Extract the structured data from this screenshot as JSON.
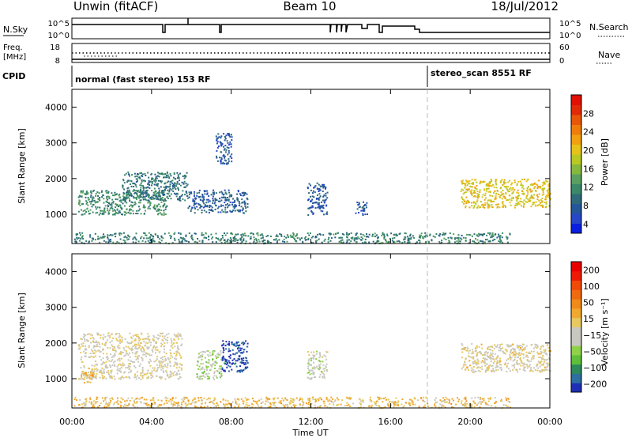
{
  "header": {
    "radar": "Unwin (fitACF)",
    "beam": "Beam 10",
    "date": "18/Jul/2012"
  },
  "aux_panels": {
    "nsky_label": "N.Sky",
    "nsky_ticks": [
      "10^5",
      "10^0"
    ],
    "nsearch_label": "N.Search",
    "nsearch_ticks": [
      "10^5",
      "10^0"
    ],
    "freq_label_line1": "Freq.",
    "freq_label_line2": "[MHz]",
    "freq_ticks": [
      "18",
      "8"
    ],
    "nave_label": "Nave",
    "nave_ticks": [
      "60",
      "0"
    ],
    "cpid_label": "CPID",
    "modes": [
      {
        "text": "normal (fast stereo) 153 RF",
        "start_hour": 0
      },
      {
        "text": "stereo_scan 8551 RF",
        "start_hour": 18
      }
    ]
  },
  "colorbars": {
    "power": {
      "title": "Power [dB]",
      "ticks": [
        "28",
        "24",
        "20",
        "16",
        "12",
        "8",
        "4"
      ],
      "colors": [
        "#0a1fe0",
        "#2747c8",
        "#24579a",
        "#2f6a7a",
        "#3a8a6a",
        "#5aa060",
        "#86b83e",
        "#b9c824",
        "#e6c21a",
        "#f0a010",
        "#f07c0c",
        "#e8560a",
        "#e02a08",
        "#e01005"
      ]
    },
    "velocity": {
      "title": "Velocity [m s⁻¹]",
      "ticks": [
        "200",
        "100",
        "50",
        "15",
        "−15",
        "−50",
        "−100",
        "−200"
      ],
      "colors": [
        "#1f2fb5",
        "#2c6fa0",
        "#2d8a5a",
        "#5fbf3a",
        "#8fd24a",
        "#c8c8c0",
        "#c8c8c0",
        "#e8c860",
        "#f0a830",
        "#f08a18",
        "#f06a10",
        "#f04a08",
        "#ee1a06",
        "#e80000"
      ]
    }
  },
  "chart_data": [
    {
      "type": "heatmap",
      "title": "",
      "quantity": "Power",
      "xlabel": "Time UT",
      "ylabel": "Slant Range [km]",
      "xlim": [
        0,
        24
      ],
      "ylim": [
        180,
        4500
      ],
      "x_ticks": [
        "00:00",
        "04:00",
        "08:00",
        "12:00",
        "16:00",
        "20:00",
        "00:00"
      ],
      "y_ticks": [
        1000,
        2000,
        3000,
        4000
      ],
      "scale": [
        0,
        30
      ],
      "regions": [
        {
          "t0": 0.3,
          "t1": 4.8,
          "r0": 1000,
          "r1": 1700,
          "value": 10
        },
        {
          "t0": 2.5,
          "t1": 5.8,
          "r0": 1400,
          "r1": 2200,
          "value": 8
        },
        {
          "t0": 5.8,
          "t1": 8.8,
          "r0": 1050,
          "r1": 1700,
          "value": 6
        },
        {
          "t0": 7.2,
          "t1": 8.0,
          "r0": 2400,
          "r1": 3300,
          "value": 5
        },
        {
          "t0": 11.8,
          "t1": 12.8,
          "r0": 1000,
          "r1": 1900,
          "value": 5
        },
        {
          "t0": 14.2,
          "t1": 14.8,
          "r0": 1000,
          "r1": 1400,
          "value": 5
        },
        {
          "t0": 0.0,
          "t1": 22.0,
          "r0": 200,
          "r1": 500,
          "value": 9
        },
        {
          "t0": 19.5,
          "t1": 24.0,
          "r0": 1200,
          "r1": 2000,
          "value": 18
        }
      ]
    },
    {
      "type": "heatmap",
      "title": "",
      "quantity": "Velocity",
      "xlabel": "Time UT",
      "ylabel": "Slant Range [km]",
      "xlim": [
        0,
        24
      ],
      "ylim": [
        180,
        4500
      ],
      "x_ticks": [
        "00:00",
        "04:00",
        "08:00",
        "12:00",
        "16:00",
        "20:00",
        "00:00"
      ],
      "y_ticks": [
        1000,
        2000,
        3000,
        4000
      ],
      "scale": [
        -250,
        250
      ],
      "regions": [
        {
          "t0": 0.3,
          "t1": 5.5,
          "r0": 1000,
          "r1": 2300,
          "value": -10
        },
        {
          "t0": 0.3,
          "t1": 1.2,
          "r0": 900,
          "r1": 1200,
          "value": 40
        },
        {
          "t0": 6.2,
          "t1": 7.5,
          "r0": 1000,
          "r1": 1800,
          "value": -70
        },
        {
          "t0": 7.5,
          "t1": 8.8,
          "r0": 1200,
          "r1": 2100,
          "value": -220
        },
        {
          "t0": 11.8,
          "t1": 12.8,
          "r0": 1000,
          "r1": 1800,
          "value": -40
        },
        {
          "t0": 0.0,
          "t1": 22.0,
          "r0": 200,
          "r1": 500,
          "value": 30
        },
        {
          "t0": 19.5,
          "t1": 24.0,
          "r0": 1200,
          "r1": 2000,
          "value": -5
        }
      ]
    }
  ]
}
